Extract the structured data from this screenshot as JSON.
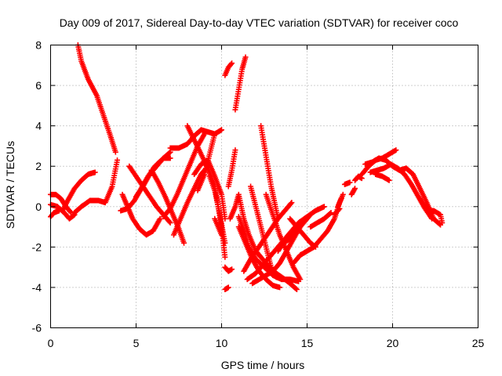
{
  "chart_data": {
    "type": "scatter",
    "title": "Day 009 of 2017, Sidereal Day-to-day VTEC variation (SDTVAR) for receiver coco",
    "xlabel": "GPS time / hours",
    "ylabel": "SDTVAR / TECUs",
    "xlim": [
      0,
      25
    ],
    "ylim": [
      -6,
      8
    ],
    "xticks": [
      "0",
      "5",
      "10",
      "15",
      "20",
      "25"
    ],
    "yticks": [
      "-6",
      "-4",
      "-2",
      "0",
      "2",
      "4",
      "6",
      "8"
    ],
    "grid": true,
    "marker": "plus",
    "color": "#ff0000",
    "tracks": [
      [
        [
          0.0,
          0.6
        ],
        [
          0.3,
          0.6
        ],
        [
          0.6,
          0.4
        ],
        [
          0.9,
          0.0
        ],
        [
          1.2,
          -0.3
        ]
      ],
      [
        [
          0.0,
          0.1
        ],
        [
          0.4,
          0.0
        ],
        [
          0.8,
          -0.3
        ],
        [
          1.1,
          -0.6
        ],
        [
          1.4,
          -0.4
        ]
      ],
      [
        [
          0.0,
          -0.5
        ],
        [
          0.2,
          -0.3
        ],
        [
          0.5,
          -0.2
        ]
      ],
      [
        [
          0.7,
          -0.2
        ],
        [
          1.0,
          0.3
        ],
        [
          1.4,
          0.9
        ],
        [
          1.8,
          1.3
        ],
        [
          2.2,
          1.6
        ],
        [
          2.6,
          1.7
        ]
      ],
      [
        [
          1.6,
          8.0
        ],
        [
          1.8,
          7.2
        ],
        [
          2.2,
          6.3
        ],
        [
          2.7,
          5.5
        ],
        [
          3.1,
          4.5
        ],
        [
          3.5,
          3.5
        ],
        [
          3.8,
          2.7
        ]
      ],
      [
        [
          1.4,
          -0.3
        ],
        [
          1.8,
          0.0
        ],
        [
          2.3,
          0.3
        ],
        [
          2.8,
          0.3
        ],
        [
          3.2,
          0.2
        ],
        [
          3.6,
          1.0
        ],
        [
          3.9,
          2.3
        ]
      ],
      [
        [
          4.2,
          0.6
        ],
        [
          4.5,
          0.0
        ],
        [
          4.8,
          -0.6
        ],
        [
          5.2,
          -1.1
        ],
        [
          5.6,
          -1.4
        ],
        [
          6.0,
          -1.2
        ],
        [
          6.4,
          -0.6
        ]
      ],
      [
        [
          4.1,
          -0.2
        ],
        [
          4.5,
          -0.1
        ],
        [
          4.9,
          0.3
        ],
        [
          5.3,
          0.9
        ],
        [
          5.7,
          1.5
        ],
        [
          6.1,
          2.0
        ],
        [
          6.6,
          2.4
        ],
        [
          7.0,
          2.4
        ]
      ],
      [
        [
          4.6,
          2.0
        ],
        [
          5.0,
          1.5
        ],
        [
          5.4,
          1.0
        ],
        [
          5.8,
          0.5
        ],
        [
          6.2,
          0.0
        ],
        [
          6.6,
          -0.4
        ],
        [
          7.0,
          -0.8
        ]
      ],
      [
        [
          5.0,
          0.5
        ],
        [
          5.4,
          1.0
        ],
        [
          5.8,
          1.6
        ],
        [
          6.2,
          2.0
        ],
        [
          6.6,
          2.4
        ],
        [
          7.0,
          2.7
        ]
      ],
      [
        [
          5.9,
          1.8
        ],
        [
          6.3,
          1.2
        ],
        [
          6.7,
          0.5
        ],
        [
          7.1,
          -0.3
        ],
        [
          7.5,
          -1.1
        ],
        [
          7.8,
          -1.8
        ]
      ],
      [
        [
          6.6,
          -0.5
        ],
        [
          7.0,
          -0.1
        ],
        [
          7.4,
          0.6
        ],
        [
          7.8,
          1.4
        ],
        [
          8.2,
          2.2
        ],
        [
          8.6,
          3.0
        ],
        [
          9.0,
          3.6
        ]
      ],
      [
        [
          7.2,
          -1.4
        ],
        [
          7.6,
          -0.6
        ],
        [
          8.0,
          0.2
        ],
        [
          8.4,
          0.9
        ],
        [
          8.8,
          1.6
        ],
        [
          9.2,
          2.0
        ]
      ],
      [
        [
          7.0,
          2.9
        ],
        [
          7.5,
          2.9
        ],
        [
          8.0,
          3.1
        ],
        [
          8.4,
          3.5
        ],
        [
          8.8,
          3.8
        ],
        [
          9.2,
          3.7
        ],
        [
          9.6,
          3.6
        ],
        [
          10.0,
          3.8
        ]
      ],
      [
        [
          8.0,
          4.0
        ],
        [
          8.4,
          3.3
        ],
        [
          8.8,
          2.6
        ],
        [
          9.2,
          1.9
        ],
        [
          9.6,
          1.0
        ],
        [
          10.0,
          -1.0
        ],
        [
          10.2,
          -2.5
        ]
      ],
      [
        [
          8.4,
          1.6
        ],
        [
          8.8,
          2.1
        ],
        [
          9.2,
          2.3
        ],
        [
          9.6,
          1.5
        ],
        [
          10.0,
          0.6
        ],
        [
          10.2,
          -0.6
        ]
      ],
      [
        [
          8.6,
          0.8
        ],
        [
          9.0,
          1.6
        ],
        [
          9.3,
          2.6
        ],
        [
          9.6,
          3.6
        ]
      ],
      [
        [
          9.3,
          1.5
        ],
        [
          9.6,
          0.8
        ],
        [
          9.9,
          -0.4
        ],
        [
          10.2,
          -1.8
        ]
      ],
      [
        [
          9.6,
          -0.6
        ],
        [
          10.0,
          -1.4
        ]
      ],
      [
        [
          10.2,
          -3.0
        ],
        [
          10.4,
          -3.2
        ],
        [
          10.6,
          -3.1
        ]
      ],
      [
        [
          10.2,
          -4.1
        ],
        [
          10.4,
          -4.0
        ]
      ],
      [
        [
          10.4,
          1.0
        ],
        [
          10.6,
          1.8
        ],
        [
          10.8,
          2.8
        ]
      ],
      [
        [
          10.5,
          -0.6
        ],
        [
          10.8,
          0.0
        ],
        [
          11.0,
          0.6
        ],
        [
          11.3,
          -0.6
        ],
        [
          11.6,
          -1.4
        ],
        [
          12.0,
          -2.2
        ],
        [
          12.4,
          -2.6
        ],
        [
          12.8,
          -3.0
        ],
        [
          13.2,
          -3.3
        ],
        [
          13.7,
          -3.6
        ],
        [
          14.0,
          -3.8
        ],
        [
          14.4,
          -4.1
        ]
      ],
      [
        [
          10.2,
          6.5
        ],
        [
          10.4,
          6.9
        ],
        [
          10.6,
          7.1
        ]
      ],
      [
        [
          10.8,
          4.8
        ],
        [
          11.0,
          5.8
        ],
        [
          11.2,
          6.8
        ],
        [
          11.4,
          7.4
        ]
      ],
      [
        [
          11.0,
          -0.5
        ],
        [
          11.3,
          -1.2
        ],
        [
          11.6,
          -2.0
        ],
        [
          12.0,
          -2.6
        ],
        [
          12.5,
          -3.0
        ],
        [
          13.0,
          -3.4
        ],
        [
          13.5,
          -3.6
        ],
        [
          14.0,
          -3.6
        ],
        [
          14.5,
          -3.7
        ]
      ],
      [
        [
          11.0,
          -1.0
        ],
        [
          11.4,
          -1.8
        ],
        [
          11.8,
          -2.6
        ],
        [
          12.2,
          -3.2
        ],
        [
          12.6,
          -3.6
        ],
        [
          13.0,
          -3.9
        ],
        [
          13.4,
          -4.0
        ]
      ],
      [
        [
          11.3,
          -3.2
        ],
        [
          11.7,
          -2.6
        ],
        [
          12.1,
          -2.1
        ],
        [
          12.5,
          -1.6
        ],
        [
          12.9,
          -1.1
        ],
        [
          13.3,
          -0.6
        ],
        [
          13.7,
          -0.2
        ],
        [
          14.1,
          0.2
        ]
      ],
      [
        [
          11.5,
          -3.6
        ],
        [
          12.0,
          -3.3
        ],
        [
          12.5,
          -2.8
        ],
        [
          13.0,
          -2.3
        ],
        [
          13.5,
          -1.8
        ],
        [
          14.0,
          -1.3
        ],
        [
          14.5,
          -0.8
        ],
        [
          15.0,
          -0.5
        ],
        [
          15.5,
          -0.2
        ],
        [
          16.0,
          0.0
        ]
      ],
      [
        [
          11.8,
          -3.8
        ],
        [
          12.2,
          -3.6
        ],
        [
          12.6,
          -3.4
        ],
        [
          13.0,
          -3.2
        ],
        [
          13.4,
          -2.8
        ],
        [
          13.8,
          -2.2
        ],
        [
          14.2,
          -1.6
        ],
        [
          14.6,
          -1.0
        ]
      ],
      [
        [
          11.7,
          1.0
        ],
        [
          12.0,
          0.0
        ],
        [
          12.3,
          -1.0
        ],
        [
          12.6,
          -2.0
        ],
        [
          12.9,
          -3.0
        ],
        [
          13.2,
          -3.5
        ]
      ],
      [
        [
          12.3,
          4.0
        ],
        [
          12.5,
          3.0
        ],
        [
          12.7,
          2.0
        ],
        [
          12.9,
          1.0
        ],
        [
          13.1,
          0.2
        ],
        [
          13.3,
          -0.6
        ]
      ],
      [
        [
          12.6,
          0.6
        ],
        [
          13.0,
          -0.4
        ],
        [
          13.4,
          -1.4
        ],
        [
          13.8,
          -2.2
        ],
        [
          14.2,
          -3.0
        ],
        [
          14.6,
          -3.6
        ]
      ],
      [
        [
          13.3,
          -2.2
        ],
        [
          13.6,
          -1.8
        ],
        [
          14.0,
          -1.6
        ],
        [
          14.4,
          -1.2
        ],
        [
          14.8,
          -0.8
        ],
        [
          15.2,
          -0.4
        ]
      ],
      [
        [
          14.2,
          -2.8
        ],
        [
          14.6,
          -2.4
        ],
        [
          15.0,
          -2.2
        ],
        [
          15.4,
          -2.0
        ],
        [
          15.8,
          -1.6
        ],
        [
          16.2,
          -1.2
        ],
        [
          16.6,
          -0.6
        ],
        [
          16.9,
          0.2
        ],
        [
          17.1,
          0.6
        ]
      ],
      [
        [
          14.0,
          -0.6
        ],
        [
          14.4,
          -1.0
        ],
        [
          14.8,
          -1.4
        ],
        [
          15.2,
          -1.8
        ],
        [
          15.5,
          -2.0
        ]
      ],
      [
        [
          15.2,
          -1.0
        ],
        [
          15.6,
          -0.8
        ],
        [
          16.0,
          -0.6
        ],
        [
          16.4,
          -0.3
        ]
      ],
      [
        [
          16.8,
          0.0
        ],
        [
          17.0,
          0.4
        ]
      ],
      [
        [
          16.6,
          -0.4
        ],
        [
          16.9,
          -0.1
        ]
      ],
      [
        [
          17.2,
          1.1
        ],
        [
          17.5,
          1.2
        ]
      ],
      [
        [
          17.6,
          0.6
        ],
        [
          17.8,
          0.9
        ]
      ],
      [
        [
          17.8,
          1.3
        ],
        [
          18.0,
          1.5
        ],
        [
          18.2,
          1.4
        ]
      ],
      [
        [
          18.2,
          1.6
        ],
        [
          18.6,
          2.0
        ],
        [
          19.0,
          2.3
        ],
        [
          19.4,
          2.4
        ],
        [
          19.8,
          2.6
        ],
        [
          20.2,
          2.8
        ]
      ],
      [
        [
          18.4,
          2.1
        ],
        [
          18.8,
          2.2
        ],
        [
          19.2,
          2.4
        ],
        [
          19.6,
          2.3
        ],
        [
          20.0,
          2.0
        ],
        [
          20.4,
          1.8
        ],
        [
          20.8,
          1.9
        ],
        [
          21.2,
          1.6
        ],
        [
          21.6,
          0.9
        ],
        [
          22.0,
          0.2
        ],
        [
          22.4,
          -0.6
        ],
        [
          22.8,
          -0.9
        ]
      ],
      [
        [
          18.7,
          1.7
        ],
        [
          19.1,
          1.8
        ],
        [
          19.5,
          1.9
        ],
        [
          19.9,
          2.1
        ],
        [
          20.3,
          1.9
        ],
        [
          20.7,
          1.6
        ],
        [
          21.1,
          1.1
        ],
        [
          21.5,
          0.5
        ],
        [
          21.9,
          -0.1
        ],
        [
          22.3,
          -0.6
        ]
      ],
      [
        [
          19.0,
          1.6
        ],
        [
          19.4,
          1.5
        ],
        [
          19.8,
          1.3
        ]
      ],
      [
        [
          21.6,
          0.4
        ],
        [
          22.0,
          -0.2
        ],
        [
          22.4,
          -0.2
        ],
        [
          22.8,
          -0.4
        ],
        [
          22.9,
          -0.8
        ]
      ]
    ]
  }
}
